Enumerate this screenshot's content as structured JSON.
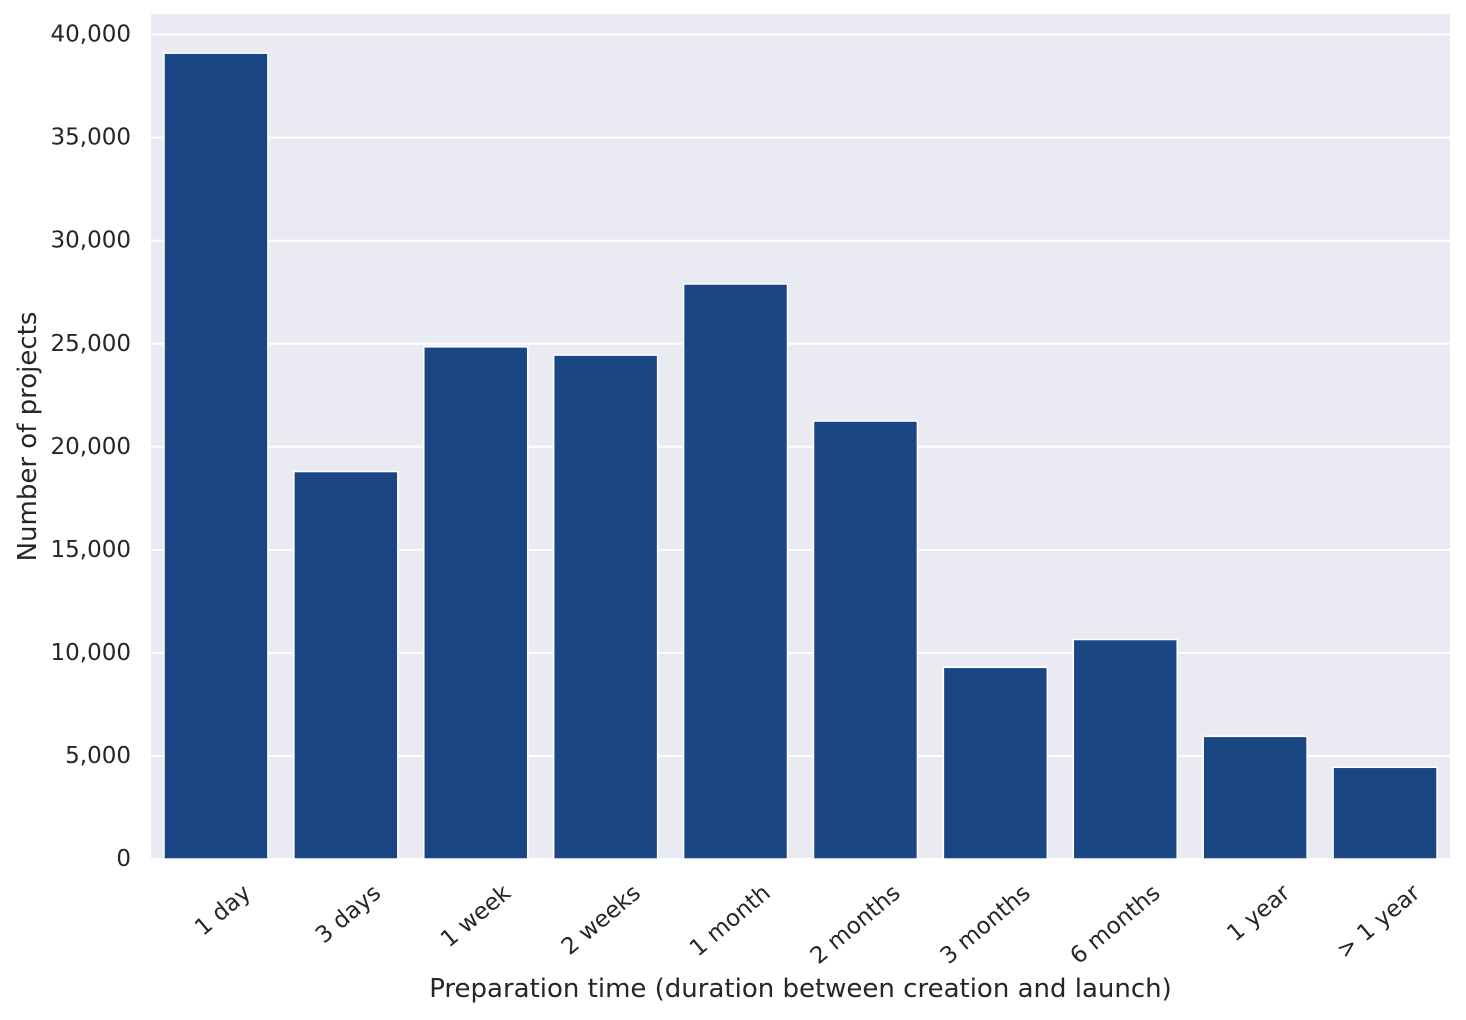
{
  "chart_data": {
    "type": "bar",
    "title": "",
    "xlabel": "Preparation time (duration between creation and launch)",
    "ylabel": "Number of projects",
    "categories": [
      "1 day",
      "3 days",
      "1 week",
      "2 weeks",
      "1 month",
      "2 months",
      "3 months",
      "6 months",
      "1 year",
      "> 1 year"
    ],
    "values": [
      39100,
      18800,
      24850,
      24450,
      27900,
      21250,
      9300,
      10650,
      5950,
      4450
    ],
    "ylim": [
      0,
      41000
    ],
    "yticks": [
      0,
      5000,
      10000,
      15000,
      20000,
      25000,
      30000,
      35000,
      40000
    ],
    "ytick_labels": [
      "0",
      "5,000",
      "10,000",
      "15,000",
      "20,000",
      "25,000",
      "30,000",
      "35,000",
      "40,000"
    ],
    "grid": true,
    "legend": false,
    "bar_color": "#1a4784",
    "background_color": "#eaeaf2",
    "grid_color": "#ffffff"
  }
}
